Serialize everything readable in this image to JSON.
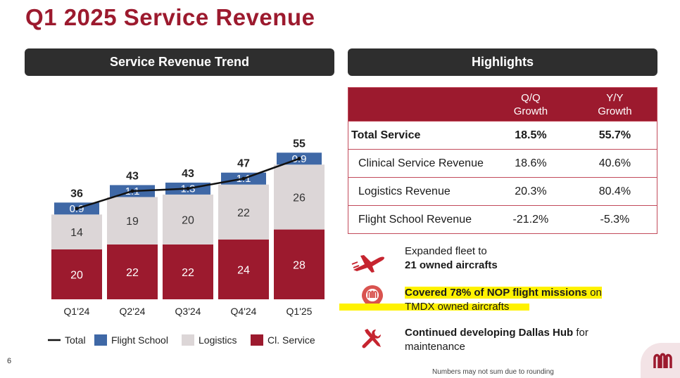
{
  "title": "Q1 2025 Service Revenue",
  "chart_panel_title": "Service Revenue Trend",
  "highlights_title": "Highlights",
  "colors": {
    "cl_service": "#9c1a2e",
    "logistics": "#dcd6d7",
    "flight_school": "#3f68a6",
    "total_line": "#111111",
    "accent": "#9c1a2e"
  },
  "chart_data": {
    "type": "bar",
    "stacked": true,
    "categories": [
      "Q1'24",
      "Q2'24",
      "Q3'24",
      "Q4'24",
      "Q1'25"
    ],
    "series": [
      {
        "name": "Cl. Service",
        "values": [
          20,
          22,
          22,
          24,
          28
        ]
      },
      {
        "name": "Logistics",
        "values": [
          14,
          19,
          20,
          22,
          26
        ]
      },
      {
        "name": "Flight School",
        "values": [
          0.9,
          1.1,
          1.3,
          1.1,
          0.9
        ]
      }
    ],
    "total": {
      "name": "Total",
      "values": [
        36,
        43,
        43,
        47,
        55
      ]
    },
    "legend": [
      "Total",
      "Flight School",
      "Logistics",
      "Cl. Service"
    ],
    "legend_position": "bottom"
  },
  "table": {
    "headers": [
      "",
      "Q/Q\nGrowth",
      "Y/Y\nGrowth"
    ],
    "rows": [
      {
        "label": "Total Service",
        "qq": "18.5%",
        "yy": "55.7%",
        "bold": true
      },
      {
        "label": "Clinical Service Revenue",
        "qq": "18.6%",
        "yy": "40.6%"
      },
      {
        "label": "Logistics Revenue",
        "qq": "20.3%",
        "yy": "80.4%"
      },
      {
        "label": "Flight School Revenue",
        "qq": "-21.2%",
        "yy": "-5.3%"
      }
    ]
  },
  "notes": {
    "fleet_line1": "Expanded fleet to",
    "fleet_line2": "21 owned aircrafts",
    "nop_bold": "Covered 78% of NOP flight missions",
    "nop_tail": " on",
    "nop_line2": "TMDX owned aircrafts",
    "hub_bold": "Continued developing Dallas Hub",
    "hub_tail": " for",
    "hub_line2": "maintenance"
  },
  "icons": {
    "fleet": "airplane-icon",
    "nop": "location-pin-icon",
    "hub": "tools-icon",
    "brand": "brand-logo-icon"
  },
  "page_number": "6",
  "footnote": "Numbers may not sum due to rounding"
}
